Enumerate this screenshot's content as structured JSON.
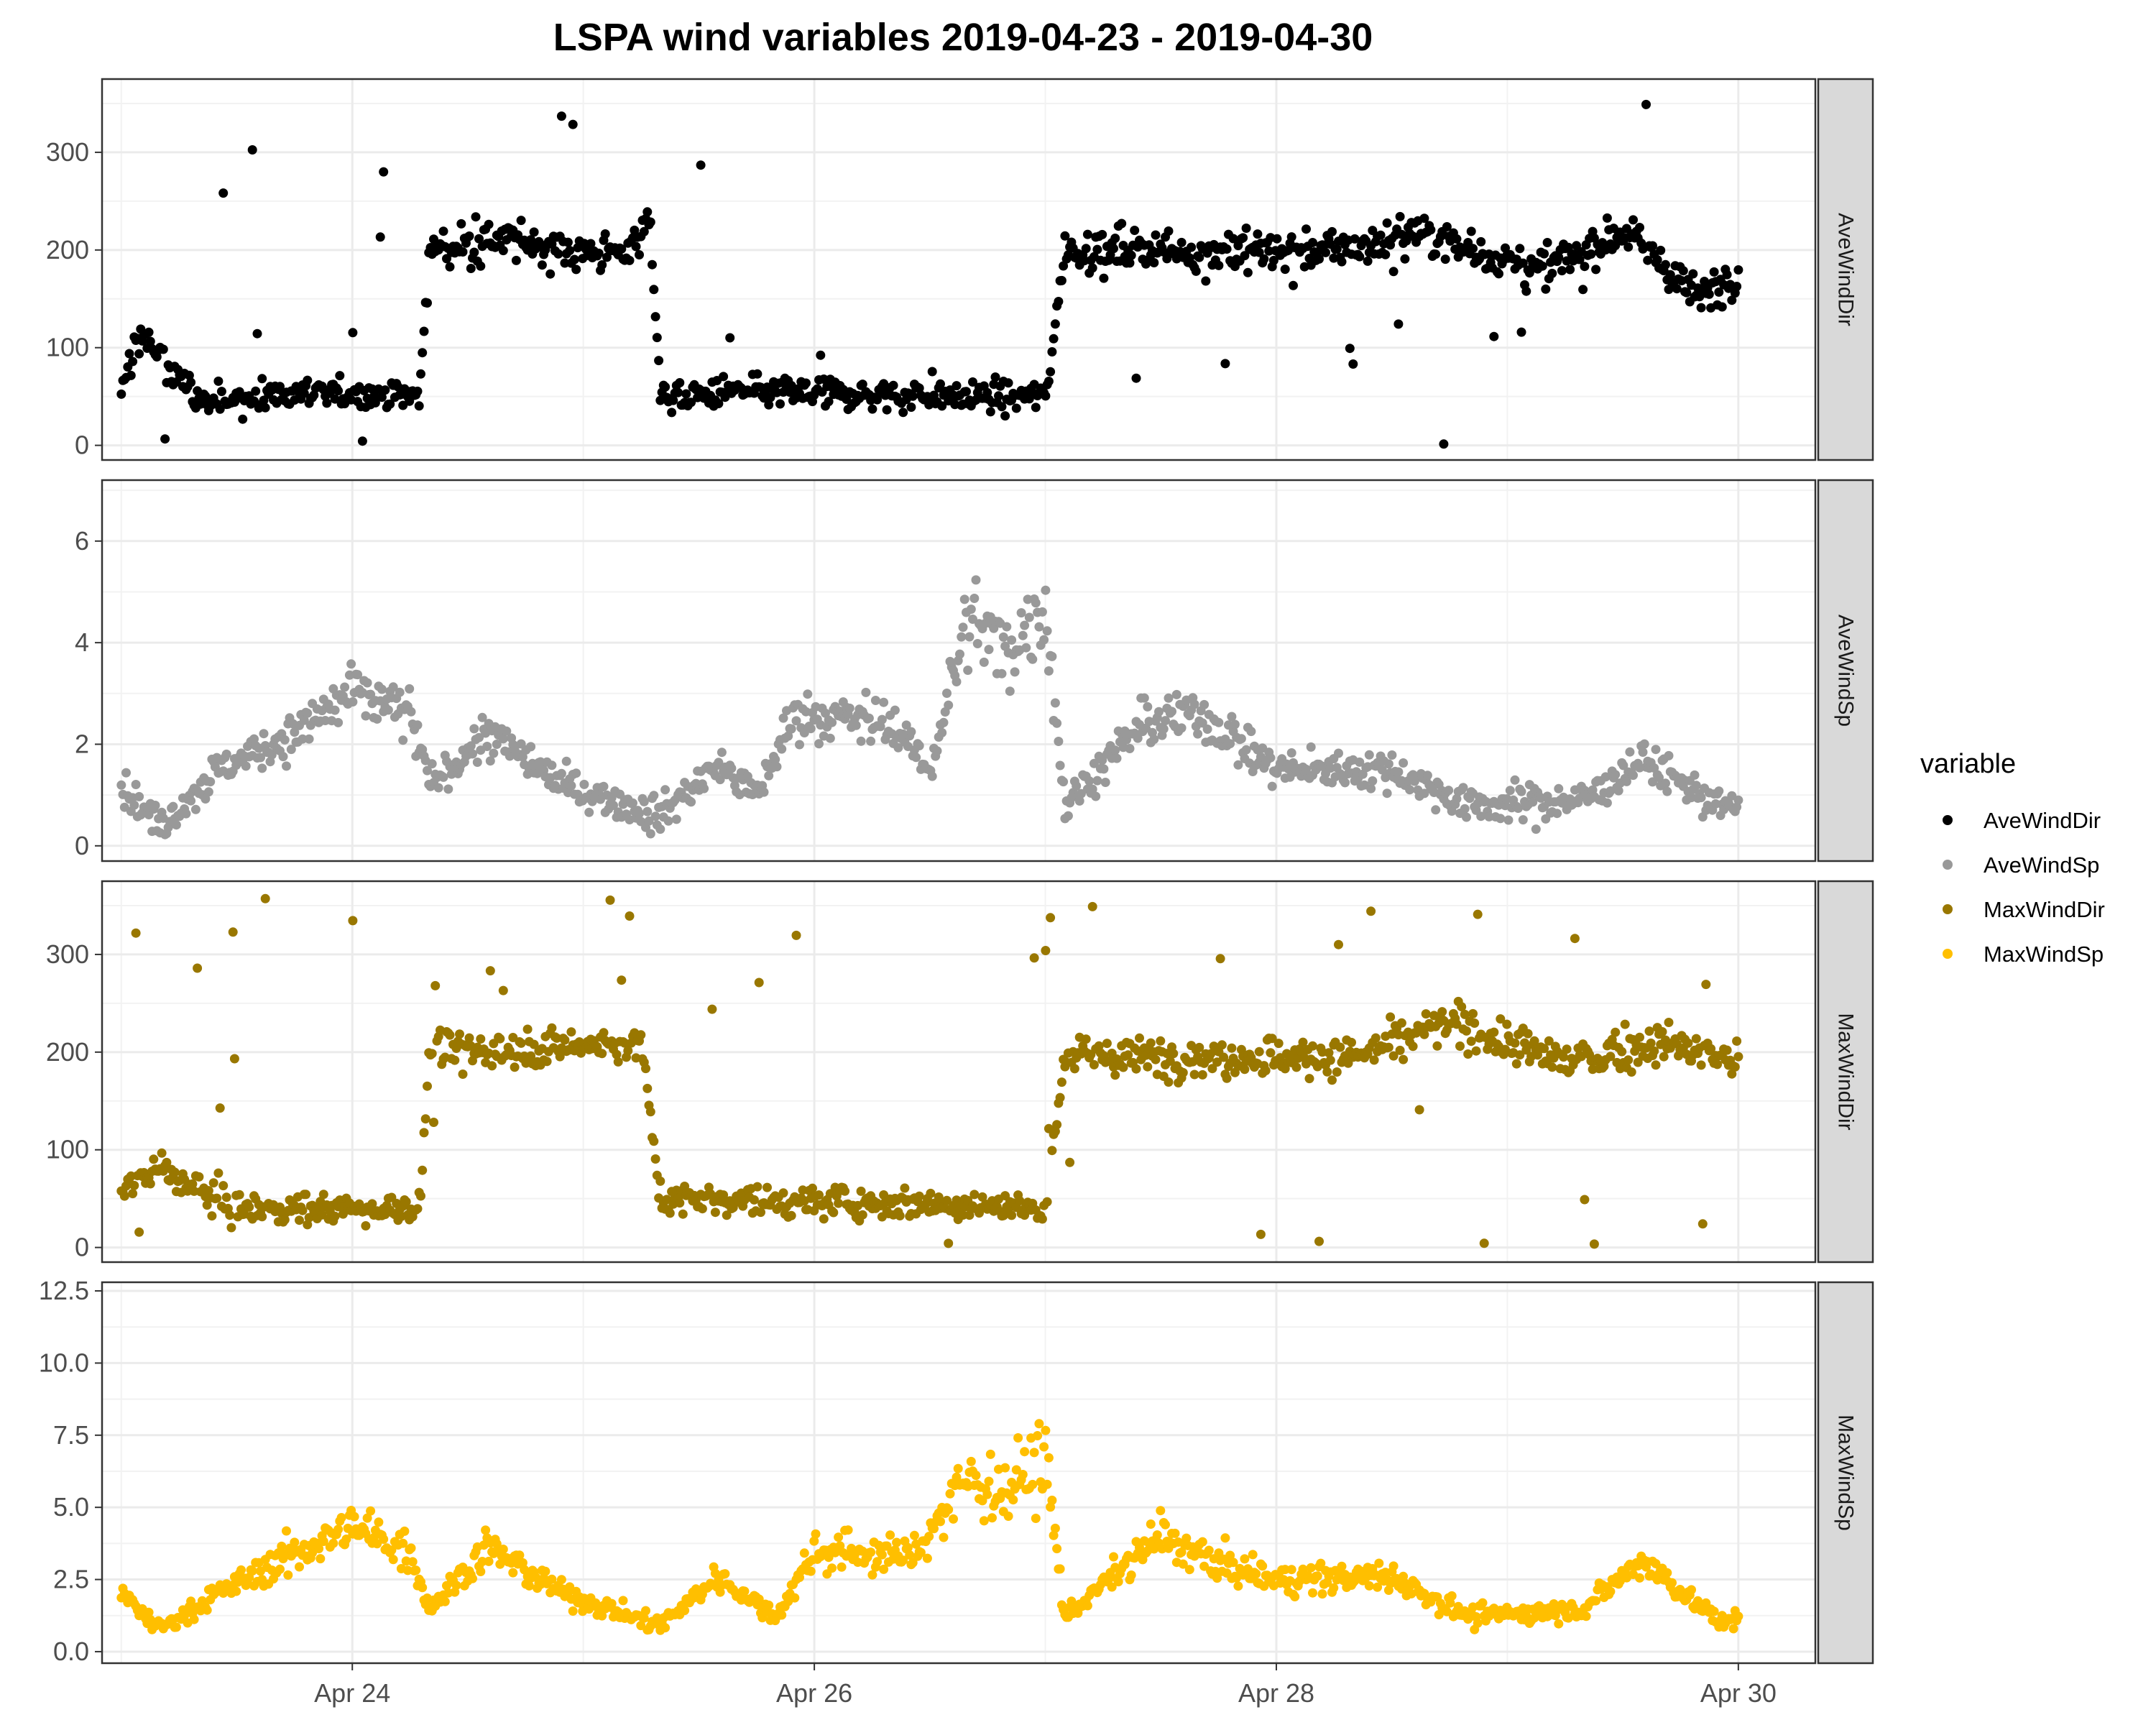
{
  "chart_data": {
    "type": "scatter",
    "title": "LSPA wind variables 2019-04-23 - 2019-04-30",
    "xlabel": "",
    "ylabel": "",
    "x_axis": {
      "type": "date",
      "range": [
        "2019-04-22T22:00",
        "2019-04-30T08:00"
      ],
      "ticks": [
        "Apr 24",
        "Apr 26",
        "Apr 28",
        "Apr 30"
      ],
      "tick_dates": [
        "2019-04-24",
        "2019-04-26",
        "2019-04-28",
        "2019-04-30"
      ]
    },
    "grid": true,
    "legend": {
      "title": "variable",
      "placement": "right"
    },
    "series": [
      {
        "name": "AveWindDir",
        "color": "#000000",
        "facet_label": "AveWindDir",
        "ylim": [
          -15,
          375
        ],
        "yticks": [
          "0",
          "100",
          "200",
          "300"
        ],
        "ytick_values": [
          0,
          100,
          200,
          300
        ],
        "approx_profile": [
          {
            "x": "2019-04-23T00:00",
            "y": 50
          },
          {
            "x": "2019-04-23T02:00",
            "y": 120
          },
          {
            "x": "2019-04-23T04:00",
            "y": 90
          },
          {
            "x": "2019-04-23T08:00",
            "y": 45
          },
          {
            "x": "2019-04-23T14:00",
            "y": 50
          },
          {
            "x": "2019-04-24T00:00",
            "y": 55
          },
          {
            "x": "2019-04-24T07:00",
            "y": 50
          },
          {
            "x": "2019-04-24T08:00",
            "y": 200
          },
          {
            "x": "2019-04-24T16:00",
            "y": 210
          },
          {
            "x": "2019-04-25T04:00",
            "y": 195
          },
          {
            "x": "2019-04-25T07:00",
            "y": 230
          },
          {
            "x": "2019-04-25T08:00",
            "y": 50
          },
          {
            "x": "2019-04-25T20:00",
            "y": 55
          },
          {
            "x": "2019-04-26T12:00",
            "y": 50
          },
          {
            "x": "2019-04-27T00:00",
            "y": 50
          },
          {
            "x": "2019-04-27T02:00",
            "y": 200
          },
          {
            "x": "2019-04-27T18:00",
            "y": 200
          },
          {
            "x": "2019-04-28T08:00",
            "y": 200
          },
          {
            "x": "2019-04-28T14:00",
            "y": 220
          },
          {
            "x": "2019-04-28T20:00",
            "y": 200
          },
          {
            "x": "2019-04-29T04:00",
            "y": 180
          },
          {
            "x": "2019-04-29T12:00",
            "y": 220
          },
          {
            "x": "2019-04-29T20:00",
            "y": 150
          },
          {
            "x": "2019-04-30T00:00",
            "y": 180
          }
        ]
      },
      {
        "name": "AveWindSp",
        "color": "#999999",
        "facet_label": "AveWindSp",
        "ylim": [
          -0.3,
          7.2
        ],
        "yticks": [
          "0",
          "2",
          "4",
          "6"
        ],
        "ytick_values": [
          0,
          2,
          4,
          6
        ],
        "approx_profile": [
          {
            "x": "2019-04-23T00:00",
            "y": 1.2
          },
          {
            "x": "2019-04-23T04:00",
            "y": 0.4
          },
          {
            "x": "2019-04-23T10:00",
            "y": 1.5
          },
          {
            "x": "2019-04-23T18:00",
            "y": 2.2
          },
          {
            "x": "2019-04-24T00:00",
            "y": 3.0
          },
          {
            "x": "2019-04-24T06:00",
            "y": 2.6
          },
          {
            "x": "2019-04-24T08:00",
            "y": 1.2
          },
          {
            "x": "2019-04-24T14:00",
            "y": 2.2
          },
          {
            "x": "2019-04-24T22:00",
            "y": 1.2
          },
          {
            "x": "2019-04-25T08:00",
            "y": 0.6
          },
          {
            "x": "2019-04-25T14:00",
            "y": 1.6
          },
          {
            "x": "2019-04-25T18:00",
            "y": 1.0
          },
          {
            "x": "2019-04-25T22:00",
            "y": 2.6
          },
          {
            "x": "2019-04-26T08:00",
            "y": 2.4
          },
          {
            "x": "2019-04-26T12:00",
            "y": 1.5
          },
          {
            "x": "2019-04-26T16:00",
            "y": 4.5
          },
          {
            "x": "2019-04-26T20:00",
            "y": 3.8
          },
          {
            "x": "2019-04-27T00:00",
            "y": 4.8
          },
          {
            "x": "2019-04-27T02:00",
            "y": 0.8
          },
          {
            "x": "2019-04-27T10:00",
            "y": 2.4
          },
          {
            "x": "2019-04-27T16:00",
            "y": 2.6
          },
          {
            "x": "2019-04-28T00:00",
            "y": 1.5
          },
          {
            "x": "2019-04-28T12:00",
            "y": 1.5
          },
          {
            "x": "2019-04-28T20:00",
            "y": 0.8
          },
          {
            "x": "2019-04-29T08:00",
            "y": 0.9
          },
          {
            "x": "2019-04-29T14:00",
            "y": 1.7
          },
          {
            "x": "2019-04-29T22:00",
            "y": 0.8
          },
          {
            "x": "2019-04-30T00:00",
            "y": 0.7
          }
        ]
      },
      {
        "name": "MaxWindDir",
        "color": "#997700",
        "facet_label": "MaxWindDir",
        "ylim": [
          -15,
          375
        ],
        "yticks": [
          "0",
          "100",
          "200",
          "300"
        ],
        "ytick_values": [
          0,
          100,
          200,
          300
        ],
        "approx_profile": [
          {
            "x": "2019-04-23T00:00",
            "y": 60
          },
          {
            "x": "2019-04-23T04:00",
            "y": 80
          },
          {
            "x": "2019-04-23T12:00",
            "y": 40
          },
          {
            "x": "2019-04-24T07:00",
            "y": 40
          },
          {
            "x": "2019-04-24T08:00",
            "y": 200
          },
          {
            "x": "2019-04-25T06:00",
            "y": 210
          },
          {
            "x": "2019-04-25T08:00",
            "y": 50
          },
          {
            "x": "2019-04-26T12:00",
            "y": 45
          },
          {
            "x": "2019-04-27T00:00",
            "y": 40
          },
          {
            "x": "2019-04-27T02:00",
            "y": 195
          },
          {
            "x": "2019-04-28T08:00",
            "y": 195
          },
          {
            "x": "2019-04-28T18:00",
            "y": 230
          },
          {
            "x": "2019-04-29T06:00",
            "y": 190
          },
          {
            "x": "2019-04-29T16:00",
            "y": 210
          },
          {
            "x": "2019-04-30T00:00",
            "y": 190
          }
        ]
      },
      {
        "name": "MaxWindSp",
        "color": "#ffbf00",
        "facet_label": "MaxWindSp",
        "ylim": [
          -0.4,
          12.8
        ],
        "yticks": [
          "0.0",
          "2.5",
          "5.0",
          "7.5",
          "10.0",
          "12.5"
        ],
        "ytick_values": [
          0,
          2.5,
          5.0,
          7.5,
          10.0,
          12.5
        ],
        "approx_profile": [
          {
            "x": "2019-04-23T00:00",
            "y": 2.0
          },
          {
            "x": "2019-04-23T04:00",
            "y": 0.8
          },
          {
            "x": "2019-04-23T10:00",
            "y": 2.0
          },
          {
            "x": "2019-04-23T18:00",
            "y": 3.4
          },
          {
            "x": "2019-04-24T00:00",
            "y": 4.3
          },
          {
            "x": "2019-04-24T06:00",
            "y": 3.5
          },
          {
            "x": "2019-04-24T08:00",
            "y": 1.5
          },
          {
            "x": "2019-04-24T14:00",
            "y": 3.6
          },
          {
            "x": "2019-04-24T22:00",
            "y": 2.0
          },
          {
            "x": "2019-04-25T08:00",
            "y": 0.9
          },
          {
            "x": "2019-04-25T14:00",
            "y": 2.6
          },
          {
            "x": "2019-04-25T20:00",
            "y": 1.2
          },
          {
            "x": "2019-04-26T00:00",
            "y": 3.5
          },
          {
            "x": "2019-04-26T10:00",
            "y": 3.3
          },
          {
            "x": "2019-04-26T16:00",
            "y": 6.0
          },
          {
            "x": "2019-04-26T20:00",
            "y": 5.5
          },
          {
            "x": "2019-04-27T00:00",
            "y": 6.8
          },
          {
            "x": "2019-04-27T02:00",
            "y": 1.2
          },
          {
            "x": "2019-04-27T12:00",
            "y": 4.0
          },
          {
            "x": "2019-04-27T18:00",
            "y": 3.0
          },
          {
            "x": "2019-04-28T00:00",
            "y": 2.5
          },
          {
            "x": "2019-04-28T12:00",
            "y": 2.6
          },
          {
            "x": "2019-04-28T20:00",
            "y": 1.2
          },
          {
            "x": "2019-04-29T08:00",
            "y": 1.5
          },
          {
            "x": "2019-04-29T14:00",
            "y": 3.2
          },
          {
            "x": "2019-04-29T22:00",
            "y": 1.0
          },
          {
            "x": "2019-04-30T00:00",
            "y": 1.3
          }
        ]
      }
    ]
  }
}
